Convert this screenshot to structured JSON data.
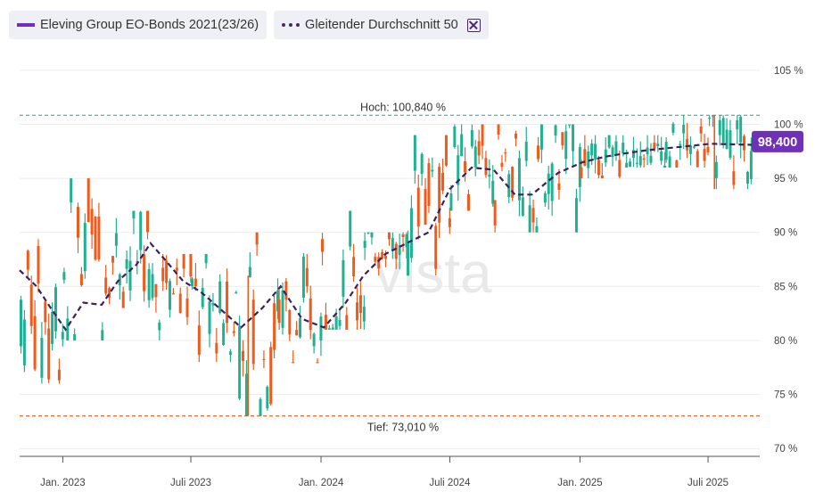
{
  "legend": {
    "series_label": "Eleving Group EO-Bonds 2021(23/26)",
    "ma_label": "Gleitender Durchschnitt 50",
    "close_icon": "close-icon"
  },
  "watermark": "vista",
  "colors": {
    "up": "#1fb191",
    "down": "#f05a1a",
    "ma": "#3d1f5e",
    "accent": "#7030b8",
    "high_line": "#2cb5a8",
    "low_line": "#f05a1a"
  },
  "chart_data": {
    "type": "candlestick",
    "y_ticks": [
      "70 %",
      "75 %",
      "80 %",
      "85 %",
      "90 %",
      "95 %",
      "100 %",
      "105 %"
    ],
    "ylim": [
      70,
      106
    ],
    "x_ticks": [
      "Jan. 2023",
      "Juli 2023",
      "Jan. 2024",
      "Juli 2024",
      "Jan. 2025",
      "Juli 2025"
    ],
    "high_label": "Hoch: 100,840 %",
    "high_value": 100.84,
    "low_label": "Tief: 73,010 %",
    "low_value": 73.01,
    "last_value_label": "98,400",
    "last_value": 98.4,
    "series": [
      {
        "name": "Eleving Group EO-Bonds 2021(23/26)",
        "kind": "ohlc",
        "segments": [
          {
            "from": "2022-11",
            "to": "2023-01",
            "lo": 76,
            "hi": 90,
            "base": 83
          },
          {
            "from": "2023-01",
            "to": "2023-03",
            "lo": 80,
            "hi": 95,
            "base": 87
          },
          {
            "from": "2023-03",
            "to": "2023-05",
            "lo": 83,
            "hi": 92,
            "base": 88
          },
          {
            "from": "2023-05",
            "to": "2023-07",
            "lo": 80,
            "hi": 88,
            "base": 85
          },
          {
            "from": "2023-07",
            "to": "2023-09",
            "lo": 78,
            "hi": 88,
            "base": 83
          },
          {
            "from": "2023-09",
            "to": "2023-11",
            "lo": 73,
            "hi": 90,
            "base": 82
          },
          {
            "from": "2023-11",
            "to": "2024-01",
            "lo": 78,
            "hi": 89,
            "base": 81
          },
          {
            "from": "2024-01",
            "to": "2024-03",
            "lo": 81,
            "hi": 92,
            "base": 86
          },
          {
            "from": "2024-03",
            "to": "2024-05",
            "lo": 86,
            "hi": 90,
            "base": 89
          },
          {
            "from": "2024-05",
            "to": "2024-07",
            "lo": 86,
            "hi": 99,
            "base": 95
          },
          {
            "from": "2024-07",
            "to": "2024-09",
            "lo": 92,
            "hi": 100,
            "base": 96
          },
          {
            "from": "2024-09",
            "to": "2024-11",
            "lo": 90,
            "hi": 100,
            "base": 95
          },
          {
            "from": "2024-11",
            "to": "2025-01",
            "lo": 90,
            "hi": 100,
            "base": 97
          },
          {
            "from": "2025-01",
            "to": "2025-03",
            "lo": 95,
            "hi": 99,
            "base": 97
          },
          {
            "from": "2025-03",
            "to": "2025-05",
            "lo": 96,
            "hi": 99,
            "base": 97.5
          },
          {
            "from": "2025-05",
            "to": "2025-07",
            "lo": 96,
            "hi": 100.84,
            "base": 98
          },
          {
            "from": "2025-07",
            "to": "2025-09",
            "lo": 94,
            "hi": 100.84,
            "base": 98
          }
        ]
      },
      {
        "name": "Gleitender Durchschnitt 50",
        "kind": "line",
        "points": [
          [
            "2022-11-01",
            86.5
          ],
          [
            "2022-11-25",
            85
          ],
          [
            "2022-12-15",
            83
          ],
          [
            "2023-01-05",
            81
          ],
          [
            "2023-01-30",
            83.5
          ],
          [
            "2023-02-25",
            83.3
          ],
          [
            "2023-03-20",
            85.5
          ],
          [
            "2023-04-15",
            87
          ],
          [
            "2023-05-05",
            89
          ],
          [
            "2023-05-25",
            87.5
          ],
          [
            "2023-06-20",
            85.5
          ],
          [
            "2023-07-15",
            84.5
          ],
          [
            "2023-08-10",
            83
          ],
          [
            "2023-09-10",
            81.2
          ],
          [
            "2023-10-10",
            83
          ],
          [
            "2023-11-05",
            85
          ],
          [
            "2023-12-05",
            82
          ],
          [
            "2024-01-05",
            81.2
          ],
          [
            "2024-02-05",
            83.5
          ],
          [
            "2024-03-01",
            86
          ],
          [
            "2024-04-01",
            88
          ],
          [
            "2024-05-01",
            89
          ],
          [
            "2024-06-01",
            90
          ],
          [
            "2024-07-01",
            94
          ],
          [
            "2024-08-01",
            96
          ],
          [
            "2024-09-01",
            95.8
          ],
          [
            "2024-10-01",
            93.5
          ],
          [
            "2024-10-25",
            93.5
          ],
          [
            "2024-12-01",
            95.5
          ],
          [
            "2025-01-05",
            96.5
          ],
          [
            "2025-02-05",
            97
          ],
          [
            "2025-03-05",
            97.3
          ],
          [
            "2025-04-05",
            97.6
          ],
          [
            "2025-05-05",
            97.8
          ],
          [
            "2025-06-05",
            98
          ],
          [
            "2025-07-05",
            98.2
          ],
          [
            "2025-09-01",
            98.1
          ]
        ]
      }
    ],
    "grid": true,
    "legend_position": "top-left"
  }
}
